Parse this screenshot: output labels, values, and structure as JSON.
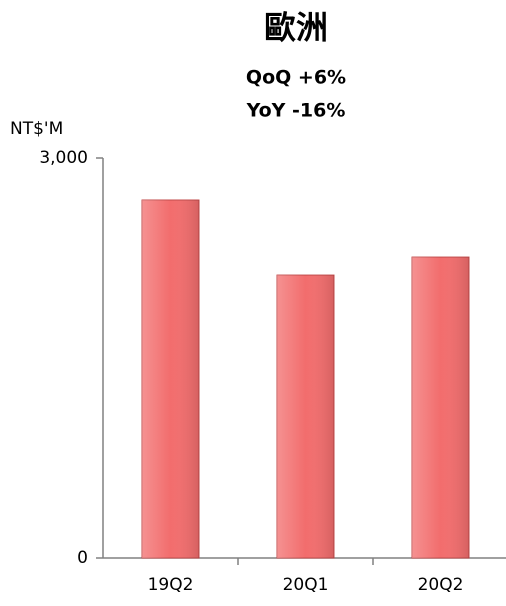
{
  "chart_data": {
    "type": "bar",
    "title": "歐洲",
    "annotations": [
      "QoQ +6%",
      "YoY -16%"
    ],
    "y_label": "NT$'M",
    "categories": [
      "19Q2",
      "20Q1",
      "20Q2"
    ],
    "values": [
      2685,
      2122,
      2257
    ],
    "color": "#f26d6d",
    "ylim": [
      0,
      3000
    ],
    "yticks": [
      0,
      {
        "value": 3000,
        "label": "3,000"
      }
    ]
  }
}
